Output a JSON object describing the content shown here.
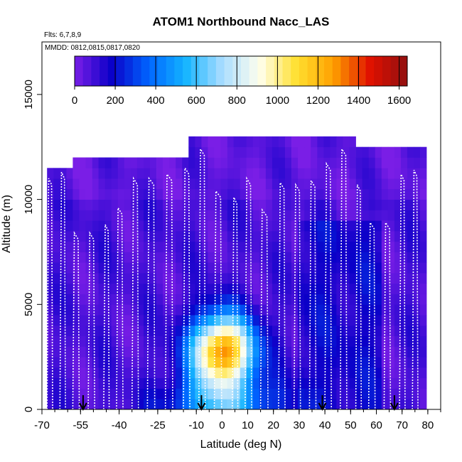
{
  "chart_data": {
    "type": "heatmap",
    "title": "ATOM1 Northbound Nacc_LAS",
    "flights_label": "Flts: 6,7,8,9",
    "dates_label": "MMDD: 0812,0815,0817,0820",
    "xlabel": "Latitude (deg N)",
    "ylabel": "Altitude (m)",
    "xlim": [
      -70,
      85
    ],
    "ylim": [
      0,
      17500
    ],
    "x_ticks": [
      -70,
      -55,
      -40,
      -25,
      -10,
      0,
      10,
      20,
      30,
      40,
      50,
      60,
      70,
      80
    ],
    "x_tick_labels": [
      "-70",
      "-55",
      "-40",
      "-25",
      "-10",
      "0",
      "10",
      "20",
      "30",
      "40",
      "50",
      "60",
      "70",
      "80"
    ],
    "y_ticks": [
      0,
      5000,
      10000,
      15000
    ],
    "y_tick_labels": [
      "0",
      "5000",
      "10000",
      "15000"
    ],
    "colorbar": {
      "ticks": [
        0,
        200,
        400,
        600,
        800,
        1000,
        1200,
        1400,
        1600
      ],
      "tick_labels": [
        "0",
        "200",
        "400",
        "600",
        "800",
        "1000",
        "1200",
        "1400",
        "1600"
      ],
      "range": [
        0,
        1640
      ],
      "palette": [
        "#7a1ee6",
        "#0a00c8",
        "#0064ff",
        "#14b4ff",
        "#aaddff",
        "#ffffee",
        "#ffe030",
        "#ffa000",
        "#e01000",
        "#901010"
      ]
    },
    "flight_marker_latitudes": [
      -54,
      -8,
      39,
      67
    ],
    "top_altitude_by_latitude": [
      [
        -68,
        11500
      ],
      [
        -60,
        12000
      ],
      [
        -22,
        12000
      ],
      [
        -13,
        13000
      ],
      [
        33,
        13000
      ],
      [
        50,
        12500
      ],
      [
        77,
        12500
      ]
    ],
    "high_concentration_region": {
      "lat_range": [
        -8,
        6
      ],
      "alt_range": [
        1500,
        3500
      ],
      "peak_value": 1250
    }
  }
}
